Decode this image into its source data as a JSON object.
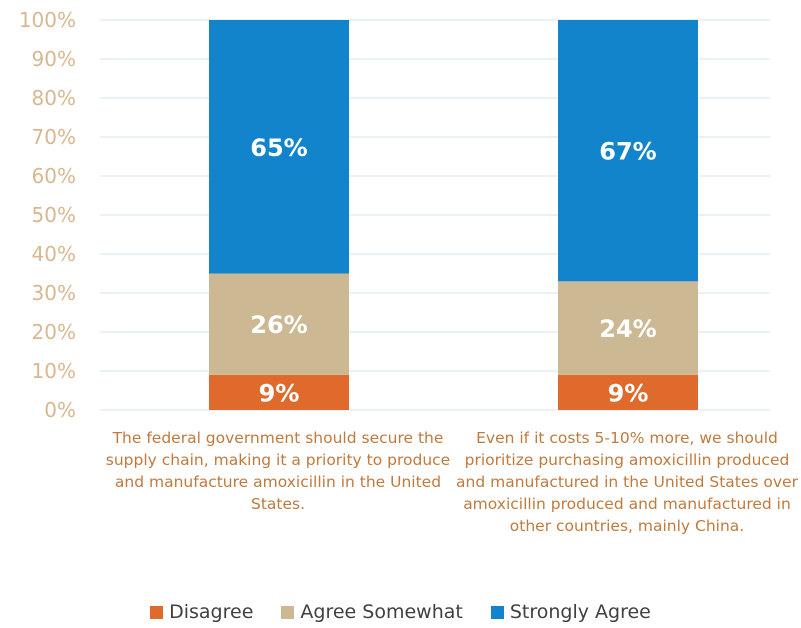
{
  "chart_data": {
    "type": "bar",
    "stacked": true,
    "categories": [
      "The federal government should secure the supply chain, making it a priority to produce and manufacture amoxicillin in the United States.",
      "Even if it costs 5-10% more, we should prioritize purchasing amoxicillin produced and manufactured in the United States over amoxicillin produced and manufactured in other countries, mainly China."
    ],
    "series": [
      {
        "name": "Disagree",
        "values": [
          9,
          9
        ],
        "color": "#e06a2b"
      },
      {
        "name": "Agree Somewhat",
        "values": [
          26,
          24
        ],
        "color": "#cdb894"
      },
      {
        "name": "Strongly Agree",
        "values": [
          65,
          67
        ],
        "color": "#1284cc"
      }
    ],
    "ylim": [
      0,
      100
    ],
    "yticks": [
      "0%",
      "10%",
      "20%",
      "30%",
      "40%",
      "50%",
      "60%",
      "70%",
      "80%",
      "90%",
      "100%"
    ],
    "data_labels": [
      [
        "9%",
        "26%",
        "65%"
      ],
      [
        "9%",
        "24%",
        "67%"
      ]
    ],
    "grid": true,
    "legend_position": "bottom"
  }
}
